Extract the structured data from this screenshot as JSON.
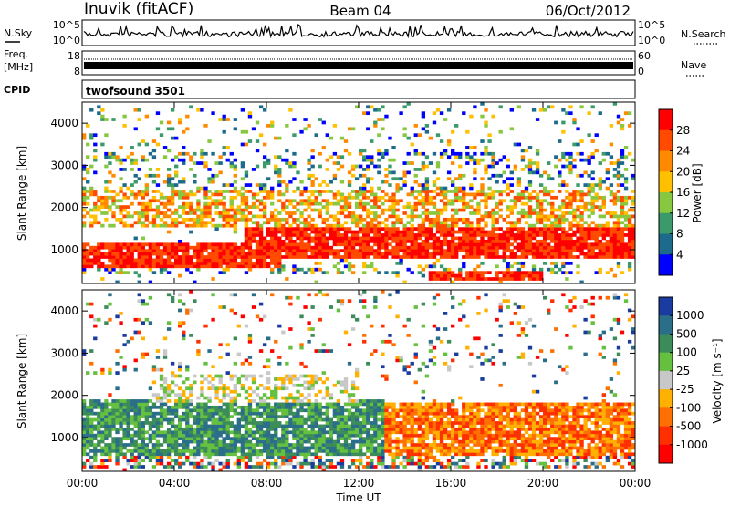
{
  "header": {
    "station": "Inuvik (fitACF)",
    "beam": "Beam 04",
    "date": "06/Oct/2012"
  },
  "noise_panel": {
    "left_label": "N.Sky",
    "left_ticks": [
      "10^5",
      "10^0"
    ],
    "right_ticks": [
      "10^5",
      "10^0"
    ],
    "right_label": "N.Search"
  },
  "freq_panel": {
    "left_label_1": "Freq.",
    "left_label_2": "[MHz]",
    "left_ticks": [
      "18",
      "8"
    ],
    "right_ticks": [
      "60",
      "0"
    ],
    "right_label": "Nave"
  },
  "cpid_panel": {
    "label": "CPID",
    "program": "twofsound 3501"
  },
  "chart_data": [
    {
      "type": "heatmap",
      "name": "power",
      "ylabel": "Slant Range [km]",
      "ylim": [
        200,
        4500
      ],
      "y_ticks": [
        "4000",
        "3000",
        "2000",
        "1000"
      ],
      "colorbar_label": "Power [dB]",
      "colorbar_ticks": [
        "28",
        "24",
        "20",
        "16",
        "12",
        "8",
        "4"
      ],
      "colorbar_colors": [
        "#ff0000",
        "#ff4a00",
        "#ff8a00",
        "#ffc000",
        "#88c840",
        "#3a9a6a",
        "#1c6a8c",
        "#0000ff"
      ],
      "bands": [
        {
          "x": [
            0,
            24
          ],
          "y": [
            400,
            700
          ],
          "level": "weak-noise"
        },
        {
          "x": [
            0,
            8.5
          ],
          "y": [
            600,
            1200
          ],
          "level": "strong"
        },
        {
          "x": [
            7,
            24
          ],
          "y": [
            800,
            1500
          ],
          "level": "strong"
        },
        {
          "x": [
            15,
            20
          ],
          "y": [
            250,
            500
          ],
          "level": "strong"
        },
        {
          "x": [
            0,
            24
          ],
          "y": [
            1500,
            2400
          ],
          "level": "medium"
        },
        {
          "x": [
            0,
            24
          ],
          "y": [
            2400,
            3300
          ],
          "level": "weak"
        },
        {
          "x": [
            0,
            24
          ],
          "y": [
            3300,
            4400
          ],
          "level": "sparse"
        }
      ]
    },
    {
      "type": "heatmap",
      "name": "velocity",
      "xlabel": "Time UT",
      "x_ticks": [
        "00:00",
        "04:00",
        "08:00",
        "12:00",
        "16:00",
        "20:00",
        "00:00"
      ],
      "ylabel": "Slant Range [km]",
      "ylim": [
        200,
        4500
      ],
      "y_ticks": [
        "4000",
        "3000",
        "2000",
        "1000"
      ],
      "colorbar_label": "Velocity [m s⁻¹]",
      "colorbar_ticks": [
        "1000",
        "500",
        "100",
        "25",
        "-25",
        "-100",
        "-500",
        "-1000"
      ],
      "colorbar_colors": [
        "#1a3ca0",
        "#2a6e8a",
        "#3c8c5a",
        "#66c040",
        "#c8c8c8",
        "#ffb000",
        "#ff7000",
        "#ff3000",
        "#ff0000"
      ],
      "bands": [
        {
          "x": [
            0,
            13
          ],
          "y": [
            500,
            1900
          ],
          "level": "positive"
        },
        {
          "x": [
            13,
            24
          ],
          "y": [
            600,
            1800
          ],
          "level": "negative"
        },
        {
          "x": [
            3,
            12
          ],
          "y": [
            1800,
            2500
          ],
          "level": "near-zero"
        },
        {
          "x": [
            0,
            24
          ],
          "y": [
            250,
            600
          ],
          "level": "mixed"
        },
        {
          "x": [
            0,
            24
          ],
          "y": [
            2500,
            4400
          ],
          "level": "sparse"
        }
      ]
    }
  ]
}
